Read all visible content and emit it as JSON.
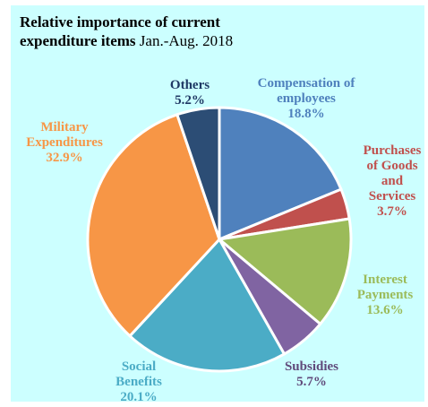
{
  "chart_data": {
    "type": "pie",
    "title": "Relative importance of current",
    "title_line2": "expenditure  items",
    "period": "Jan.-Aug.  2018",
    "slices": [
      {
        "name": "Compensation of employees",
        "label_lines": [
          "Compensation of",
          "employees"
        ],
        "pct_label": "18.8%",
        "value": 18.8,
        "color": "#4f81bd"
      },
      {
        "name": "Purchases of Goods and Services",
        "label_lines": [
          "Purchases",
          "of Goods",
          "and",
          "Services"
        ],
        "pct_label": "3.7%",
        "value": 3.7,
        "color": "#c0504d"
      },
      {
        "name": "Interest Payments",
        "label_lines": [
          "Interest",
          "Payments"
        ],
        "pct_label": "13.6%",
        "value": 13.6,
        "color": "#9bbb59"
      },
      {
        "name": "Subsidies",
        "label_lines": [
          "Subsidies"
        ],
        "pct_label": "5.7%",
        "value": 5.7,
        "color": "#8064a2"
      },
      {
        "name": "Social Benefits",
        "label_lines": [
          "Social",
          "Benefits"
        ],
        "pct_label": "20.1%",
        "value": 20.1,
        "color": "#4bacc6"
      },
      {
        "name": "Military Expenditures",
        "label_lines": [
          "Military",
          "Expenditures"
        ],
        "pct_label": "32.9%",
        "value": 32.9,
        "color": "#f79646"
      },
      {
        "name": "Others",
        "label_lines": [
          "Others"
        ],
        "pct_label": "5.2%",
        "value": 5.2,
        "color": "#2c4d75"
      }
    ],
    "label_colors": {
      "Compensation of employees": "#4f81bd",
      "Purchases of Goods and Services": "#c0504d",
      "Interest Payments": "#9bbb59",
      "Subsidies": "#604a7b",
      "Social Benefits": "#4bacc6",
      "Military Expenditures": "#f79646",
      "Others": "#1f3864"
    },
    "start_angle": "12 o'clock",
    "direction": "clockwise",
    "legend": "none"
  }
}
